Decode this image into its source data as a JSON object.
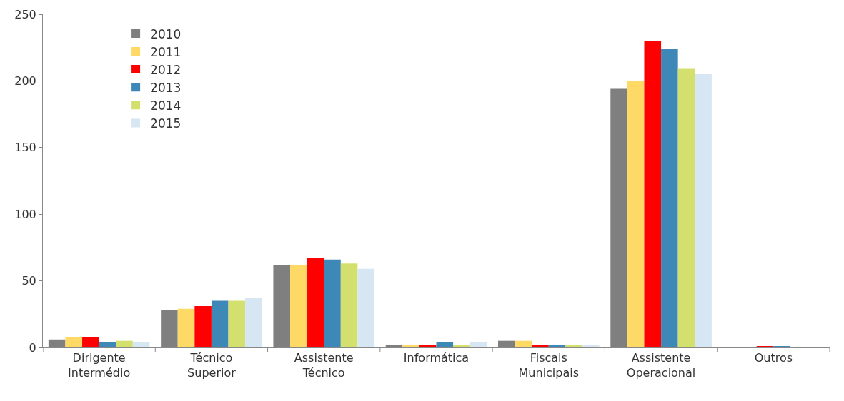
{
  "chart_data": {
    "type": "bar",
    "categories": [
      "Dirigente\nIntermédio",
      "Técnico\nSuperior",
      "Assistente\nTécnico",
      "Informática",
      "Fiscais\nMunicipais",
      "Assistente\nOperacional",
      "Outros"
    ],
    "series": [
      {
        "name": "2010",
        "color": "#7f7f7f",
        "values": [
          6,
          28,
          62,
          2,
          5,
          194,
          0
        ]
      },
      {
        "name": "2011",
        "color": "#ffd966",
        "values": [
          8,
          29,
          62,
          2,
          5,
          200,
          0
        ]
      },
      {
        "name": "2012",
        "color": "#ff0000",
        "values": [
          8,
          31,
          67,
          2,
          2,
          230,
          1
        ]
      },
      {
        "name": "2013",
        "color": "#3e88b8",
        "values": [
          4,
          35,
          66,
          4,
          2,
          224,
          1
        ]
      },
      {
        "name": "2014",
        "color": "#d4e06e",
        "values": [
          5,
          35,
          63,
          2,
          2,
          209,
          0.5
        ]
      },
      {
        "name": "2015",
        "color": "#d6e6f2",
        "values": [
          4,
          37,
          59,
          4,
          2,
          205,
          0
        ]
      }
    ],
    "ylim": [
      0,
      250
    ],
    "yticks": [
      0,
      50,
      100,
      150,
      200,
      250
    ],
    "grid": false,
    "legend": "top left"
  }
}
